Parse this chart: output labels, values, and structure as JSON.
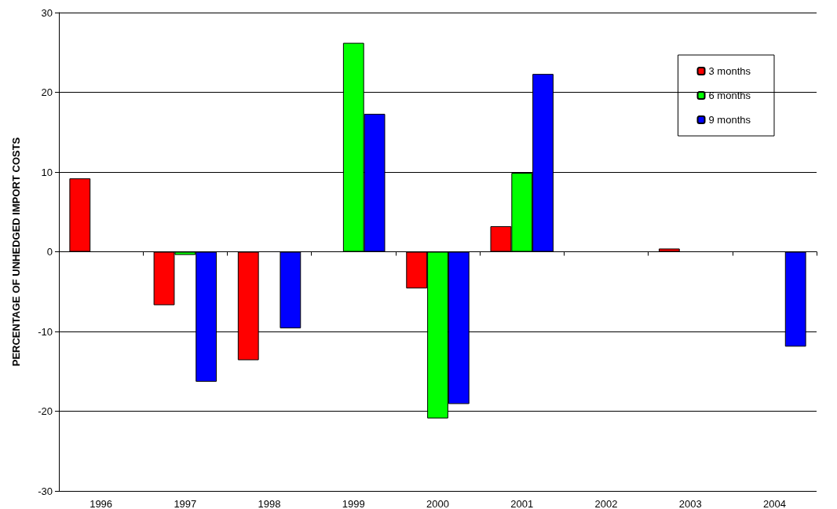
{
  "chart_data": {
    "type": "bar",
    "ylabel": "PERCENTAGE OF UNHEDGED IMPORT COSTS",
    "categories": [
      "1996",
      "1997",
      "1998",
      "1999",
      "2000",
      "2001",
      "2002",
      "2003",
      "2004"
    ],
    "series": [
      {
        "name": "3 months",
        "color": "#ff0000",
        "values": [
          9.2,
          -6.7,
          -13.6,
          null,
          -4.6,
          3.2,
          null,
          0.4,
          null
        ]
      },
      {
        "name": "6 months",
        "color": "#00ff00",
        "values": [
          null,
          -0.4,
          null,
          26.2,
          -20.9,
          9.9,
          null,
          null,
          null
        ]
      },
      {
        "name": "9 months",
        "color": "#0000ff",
        "values": [
          null,
          -16.3,
          -9.6,
          17.3,
          -19.1,
          22.3,
          null,
          null,
          -11.9
        ]
      }
    ],
    "ylim": [
      -30,
      30
    ],
    "yticks": [
      -30,
      -20,
      -10,
      0,
      10,
      20,
      30
    ],
    "grid": "y",
    "legend": "top right"
  }
}
